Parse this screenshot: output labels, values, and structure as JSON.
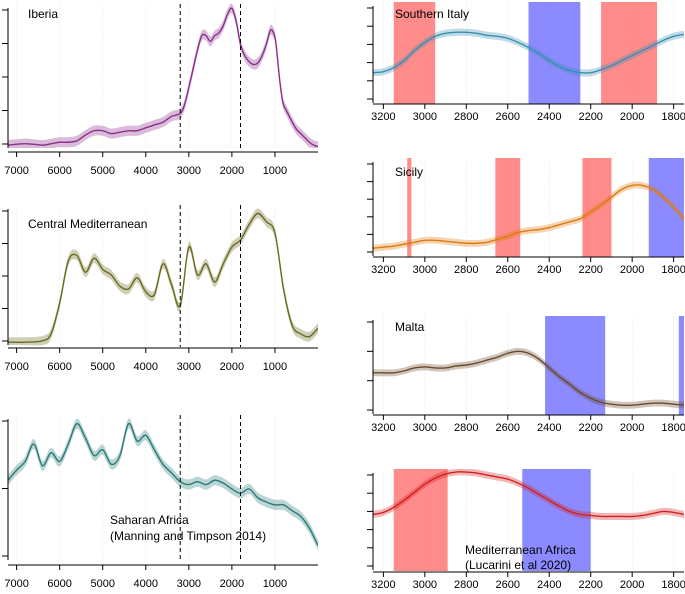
{
  "colors": {
    "iberia": "#8b2f8b",
    "central": "#6b6b1f",
    "sahara": "#2a7a7a",
    "southern_italy": "#3a8fb0",
    "sicily": "#e07a10",
    "malta": "#6b4a2a",
    "med_africa": "#d42020",
    "red_band": "#ff5a5a",
    "blue_band": "#5a5aff"
  },
  "chart_data": [
    {
      "type": "area",
      "id": "iberia",
      "title": "Iberia",
      "xlim": [
        7200,
        0
      ],
      "ylim": [
        0,
        1
      ],
      "x_ticks": [
        7000,
        6000,
        5000,
        4000,
        3000,
        2000,
        1000
      ],
      "dashed_lines": [
        3200,
        1800
      ],
      "series": [
        {
          "name": "Iberia",
          "x": [
            7200,
            6800,
            6400,
            6200,
            6000,
            5800,
            5600,
            5400,
            5200,
            5000,
            4800,
            4600,
            4400,
            4200,
            4000,
            3800,
            3600,
            3400,
            3200,
            3100,
            3000,
            2900,
            2800,
            2700,
            2600,
            2500,
            2400,
            2300,
            2200,
            2100,
            2000,
            1900,
            1800,
            1700,
            1600,
            1500,
            1400,
            1300,
            1200,
            1100,
            1000,
            950,
            900,
            850,
            800,
            700,
            600,
            500,
            400,
            300,
            200,
            100,
            0
          ],
          "y": [
            0.02,
            0.03,
            0.02,
            0.03,
            0.04,
            0.04,
            0.05,
            0.09,
            0.12,
            0.12,
            0.1,
            0.11,
            0.12,
            0.12,
            0.14,
            0.16,
            0.18,
            0.22,
            0.24,
            0.3,
            0.42,
            0.55,
            0.68,
            0.78,
            0.78,
            0.74,
            0.78,
            0.8,
            0.85,
            0.93,
            0.97,
            0.88,
            0.72,
            0.64,
            0.6,
            0.58,
            0.59,
            0.64,
            0.72,
            0.82,
            0.77,
            0.65,
            0.5,
            0.38,
            0.3,
            0.24,
            0.18,
            0.13,
            0.1,
            0.07,
            0.04,
            0.02,
            0.01
          ]
        }
      ]
    },
    {
      "type": "area",
      "id": "central",
      "title": "Central Mediterranean",
      "xlim": [
        7200,
        0
      ],
      "ylim": [
        0,
        1
      ],
      "x_ticks": [
        7000,
        6000,
        5000,
        4000,
        3000,
        2000,
        1000
      ],
      "dashed_lines": [
        3200,
        1800
      ],
      "series": [
        {
          "name": "Central Mediterranean",
          "x": [
            7200,
            6800,
            6400,
            6200,
            6000,
            5800,
            5600,
            5400,
            5200,
            5000,
            4800,
            4600,
            4400,
            4200,
            4000,
            3800,
            3600,
            3400,
            3200,
            3000,
            2800,
            2600,
            2400,
            2200,
            2000,
            1800,
            1600,
            1400,
            1200,
            1000,
            800,
            600,
            400,
            200,
            0
          ],
          "y": [
            0.02,
            0.02,
            0.03,
            0.08,
            0.3,
            0.6,
            0.64,
            0.52,
            0.62,
            0.54,
            0.5,
            0.42,
            0.4,
            0.48,
            0.38,
            0.36,
            0.58,
            0.43,
            0.28,
            0.7,
            0.5,
            0.58,
            0.45,
            0.58,
            0.7,
            0.75,
            0.86,
            0.94,
            0.88,
            0.8,
            0.4,
            0.14,
            0.08,
            0.06,
            0.12
          ]
        }
      ]
    },
    {
      "type": "area",
      "id": "sahara",
      "title": "Saharan Africa",
      "annotation": "(Manning and Timpson 2014)",
      "xlim": [
        7200,
        0
      ],
      "ylim": [
        0,
        1
      ],
      "x_ticks": [
        7000,
        6000,
        5000,
        4000,
        3000,
        2000,
        1000
      ],
      "dashed_lines": [
        3200,
        1800
      ],
      "series": [
        {
          "name": "Saharan Africa",
          "x": [
            7200,
            7000,
            6800,
            6600,
            6400,
            6200,
            6000,
            5800,
            5600,
            5400,
            5200,
            5000,
            4800,
            4600,
            4400,
            4200,
            4000,
            3800,
            3600,
            3400,
            3200,
            3000,
            2800,
            2600,
            2400,
            2200,
            2000,
            1800,
            1600,
            1400,
            1200,
            1000,
            800,
            600,
            400,
            200,
            0
          ],
          "y": [
            0.55,
            0.62,
            0.68,
            0.8,
            0.65,
            0.74,
            0.68,
            0.8,
            0.94,
            0.84,
            0.72,
            0.76,
            0.66,
            0.72,
            0.94,
            0.82,
            0.86,
            0.76,
            0.66,
            0.6,
            0.54,
            0.52,
            0.54,
            0.52,
            0.55,
            0.53,
            0.49,
            0.46,
            0.49,
            0.43,
            0.4,
            0.38,
            0.38,
            0.34,
            0.3,
            0.22,
            0.1
          ]
        }
      ]
    },
    {
      "type": "area",
      "id": "southern_italy",
      "title": "Southern Italy",
      "xlim": [
        3250,
        1750
      ],
      "ylim": [
        0,
        1
      ],
      "x_ticks": [
        3200,
        3000,
        2800,
        2600,
        2400,
        2200,
        2000,
        1800
      ],
      "bands": [
        {
          "from": 3150,
          "to": 2950,
          "color": "red"
        },
        {
          "from": 2500,
          "to": 2250,
          "color": "blue"
        },
        {
          "from": 2150,
          "to": 1880,
          "color": "red"
        }
      ],
      "series": [
        {
          "name": "Southern Italy",
          "x": [
            3250,
            3200,
            3150,
            3100,
            3050,
            3000,
            2950,
            2900,
            2850,
            2800,
            2750,
            2700,
            2650,
            2600,
            2550,
            2500,
            2450,
            2400,
            2350,
            2300,
            2250,
            2200,
            2150,
            2100,
            2050,
            2000,
            1950,
            1900,
            1850,
            1800,
            1750
          ],
          "y": [
            0.3,
            0.31,
            0.35,
            0.42,
            0.52,
            0.6,
            0.66,
            0.69,
            0.7,
            0.7,
            0.69,
            0.67,
            0.66,
            0.64,
            0.6,
            0.55,
            0.49,
            0.42,
            0.36,
            0.32,
            0.3,
            0.3,
            0.33,
            0.37,
            0.42,
            0.47,
            0.52,
            0.57,
            0.62,
            0.66,
            0.68
          ]
        }
      ]
    },
    {
      "type": "area",
      "id": "sicily",
      "title": "Sicily",
      "xlim": [
        3250,
        1750
      ],
      "ylim": [
        0,
        1
      ],
      "x_ticks": [
        3200,
        3000,
        2800,
        2600,
        2400,
        2200,
        2000,
        1800
      ],
      "bands": [
        {
          "from": 3085,
          "to": 3065,
          "color": "red"
        },
        {
          "from": 2660,
          "to": 2540,
          "color": "red"
        },
        {
          "from": 2240,
          "to": 2100,
          "color": "red"
        },
        {
          "from": 1920,
          "to": 1750,
          "color": "blue"
        }
      ],
      "series": [
        {
          "name": "Sicily",
          "x": [
            3250,
            3200,
            3150,
            3100,
            3050,
            3000,
            2950,
            2900,
            2850,
            2800,
            2750,
            2700,
            2650,
            2600,
            2550,
            2500,
            2450,
            2400,
            2350,
            2300,
            2250,
            2200,
            2150,
            2100,
            2050,
            2000,
            1950,
            1900,
            1850,
            1800,
            1750
          ],
          "y": [
            0.08,
            0.09,
            0.1,
            0.12,
            0.14,
            0.16,
            0.16,
            0.15,
            0.14,
            0.13,
            0.13,
            0.14,
            0.17,
            0.2,
            0.24,
            0.26,
            0.27,
            0.29,
            0.32,
            0.35,
            0.38,
            0.45,
            0.52,
            0.6,
            0.68,
            0.72,
            0.72,
            0.68,
            0.6,
            0.5,
            0.38
          ]
        }
      ]
    },
    {
      "type": "area",
      "id": "malta",
      "title": "Malta",
      "xlim": [
        3250,
        1750
      ],
      "ylim": [
        0,
        1
      ],
      "x_ticks": [
        3200,
        3000,
        2800,
        2600,
        2400,
        2200,
        2000,
        1800
      ],
      "bands": [
        {
          "from": 2420,
          "to": 2130,
          "color": "blue"
        },
        {
          "from": 1775,
          "to": 1750,
          "color": "blue"
        }
      ],
      "series": [
        {
          "name": "Malta",
          "x": [
            3250,
            3200,
            3150,
            3100,
            3050,
            3000,
            2950,
            2900,
            2850,
            2800,
            2750,
            2700,
            2650,
            2600,
            2550,
            2500,
            2450,
            2400,
            2350,
            2300,
            2250,
            2200,
            2150,
            2100,
            2050,
            2000,
            1950,
            1900,
            1850,
            1800,
            1750
          ],
          "y": [
            0.42,
            0.42,
            0.42,
            0.44,
            0.47,
            0.48,
            0.47,
            0.47,
            0.49,
            0.5,
            0.52,
            0.55,
            0.58,
            0.62,
            0.64,
            0.62,
            0.56,
            0.47,
            0.38,
            0.3,
            0.22,
            0.16,
            0.12,
            0.1,
            0.09,
            0.09,
            0.1,
            0.11,
            0.11,
            0.1,
            0.09
          ]
        }
      ]
    },
    {
      "type": "area",
      "id": "med_africa",
      "title": "Mediterranean Africa",
      "annotation": "(Lucarini et al 2020)",
      "xlim": [
        3250,
        1750
      ],
      "ylim": [
        0,
        1
      ],
      "x_ticks": [
        3200,
        3000,
        2800,
        2600,
        2400,
        2200,
        2000,
        1800
      ],
      "bands": [
        {
          "from": 3150,
          "to": 2890,
          "color": "red"
        },
        {
          "from": 2530,
          "to": 2200,
          "color": "blue"
        }
      ],
      "series": [
        {
          "name": "Mediterranean Africa",
          "x": [
            3250,
            3200,
            3150,
            3100,
            3050,
            3000,
            2950,
            2900,
            2850,
            2800,
            2750,
            2700,
            2650,
            2600,
            2550,
            2500,
            2450,
            2400,
            2350,
            2300,
            2250,
            2200,
            2150,
            2100,
            2050,
            2000,
            1950,
            1900,
            1850,
            1800,
            1750
          ],
          "y": [
            0.55,
            0.57,
            0.62,
            0.69,
            0.77,
            0.85,
            0.91,
            0.95,
            0.97,
            0.97,
            0.96,
            0.94,
            0.92,
            0.9,
            0.86,
            0.81,
            0.75,
            0.69,
            0.63,
            0.58,
            0.55,
            0.54,
            0.53,
            0.53,
            0.53,
            0.53,
            0.54,
            0.56,
            0.58,
            0.57,
            0.55
          ]
        }
      ]
    }
  ]
}
